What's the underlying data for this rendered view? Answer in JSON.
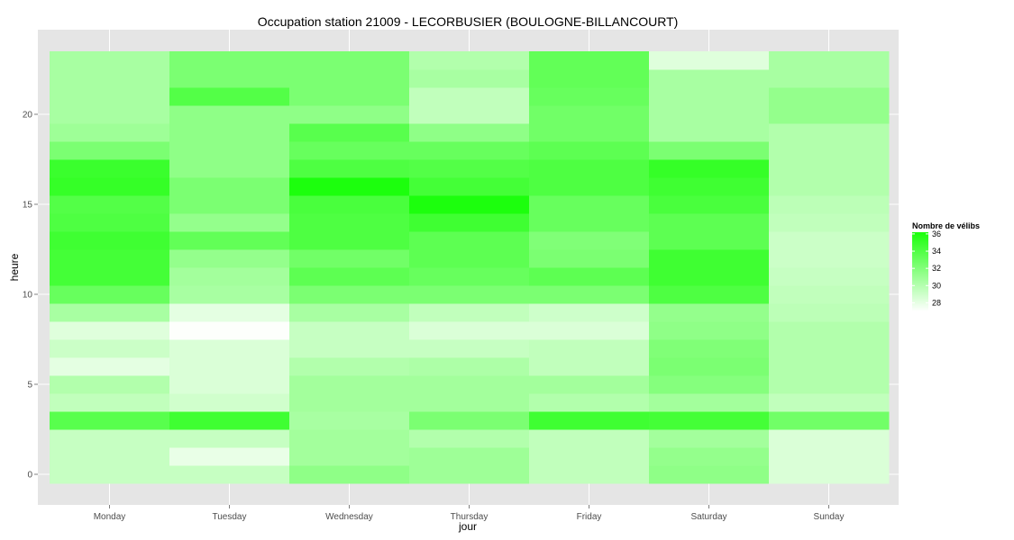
{
  "chart_data": {
    "type": "heatmap",
    "title": "Occupation station 21009 - LECORBUSIER (BOULOGNE-BILLANCOURT)",
    "xlabel": "jour",
    "ylabel": "heure",
    "x_categories": [
      "Monday",
      "Tuesday",
      "Wednesday",
      "Thursday",
      "Friday",
      "Saturday",
      "Sunday"
    ],
    "y_hours": [
      0,
      1,
      2,
      3,
      4,
      5,
      6,
      7,
      8,
      9,
      10,
      11,
      12,
      13,
      14,
      15,
      16,
      17,
      18,
      19,
      20,
      21,
      22,
      23
    ],
    "y_ticks": [
      0,
      5,
      10,
      15,
      20
    ],
    "y_tick_labels": [
      "0",
      "5",
      "10",
      "15",
      "20"
    ],
    "ylim": [
      -0.5,
      23.5
    ],
    "grid": true,
    "legend": {
      "title": "Nombre de vélibs",
      "position": "right",
      "min": 27,
      "max": 36.2,
      "ticks": [
        28,
        30,
        32,
        34,
        36
      ],
      "tick_labels": [
        "28",
        "30",
        "32",
        "34",
        "36"
      ],
      "low_color": "#ffffff",
      "high_color": "#1aff0a"
    },
    "values": {
      "Monday": [
        29.3,
        29.3,
        29.3,
        33.7,
        29.5,
        30.1,
        28.1,
        29.1,
        28.3,
        30.5,
        33.1,
        34.5,
        34.5,
        34.7,
        34.1,
        33.9,
        35.1,
        34.9,
        32.3,
        30.9,
        30.5,
        30.5,
        30.5,
        30.5
      ],
      "Tuesday": [
        29.3,
        27.9,
        29.3,
        34.7,
        28.9,
        28.5,
        28.5,
        28.5,
        27.1,
        28.1,
        30.5,
        30.7,
        31.3,
        33.3,
        31.3,
        32.3,
        32.3,
        31.5,
        31.5,
        31.5,
        31.5,
        33.9,
        32.3,
        32.3
      ],
      "Wednesday": [
        31.5,
        30.7,
        30.7,
        30.5,
        30.7,
        30.7,
        30.1,
        29.3,
        29.3,
        30.5,
        32.3,
        33.5,
        32.7,
        34.1,
        34.1,
        34.3,
        36.1,
        34.1,
        33.1,
        33.7,
        31.5,
        32.3,
        32.3,
        32.3
      ],
      "Thursday": [
        30.9,
        30.9,
        30.1,
        32.3,
        30.7,
        30.7,
        30.3,
        29.3,
        28.5,
        29.5,
        32.3,
        33.1,
        33.5,
        33.5,
        34.7,
        36.1,
        34.5,
        33.9,
        33.1,
        31.5,
        29.5,
        29.5,
        30.5,
        30.1
      ],
      "Friday": [
        29.5,
        29.5,
        29.5,
        34.7,
        30.1,
        30.7,
        29.5,
        29.5,
        28.5,
        29.0,
        32.3,
        33.5,
        32.3,
        32.1,
        33.1,
        33.1,
        34.1,
        34.1,
        33.5,
        32.7,
        32.7,
        33.1,
        33.3,
        33.3
      ],
      "Saturday": [
        31.5,
        31.3,
        30.7,
        34.5,
        30.7,
        31.9,
        32.3,
        32.1,
        31.5,
        31.3,
        34.1,
        34.7,
        34.7,
        33.5,
        33.5,
        34.3,
        34.7,
        35.1,
        32.3,
        30.5,
        30.5,
        30.5,
        30.5,
        28.3
      ],
      "Sunday": [
        28.5,
        28.5,
        28.5,
        32.7,
        29.5,
        30.1,
        30.1,
        30.1,
        30.1,
        29.7,
        29.5,
        29.3,
        29.1,
        29.1,
        29.5,
        29.7,
        30.1,
        30.1,
        30.1,
        30.1,
        31.3,
        31.3,
        30.5,
        30.5
      ]
    }
  }
}
